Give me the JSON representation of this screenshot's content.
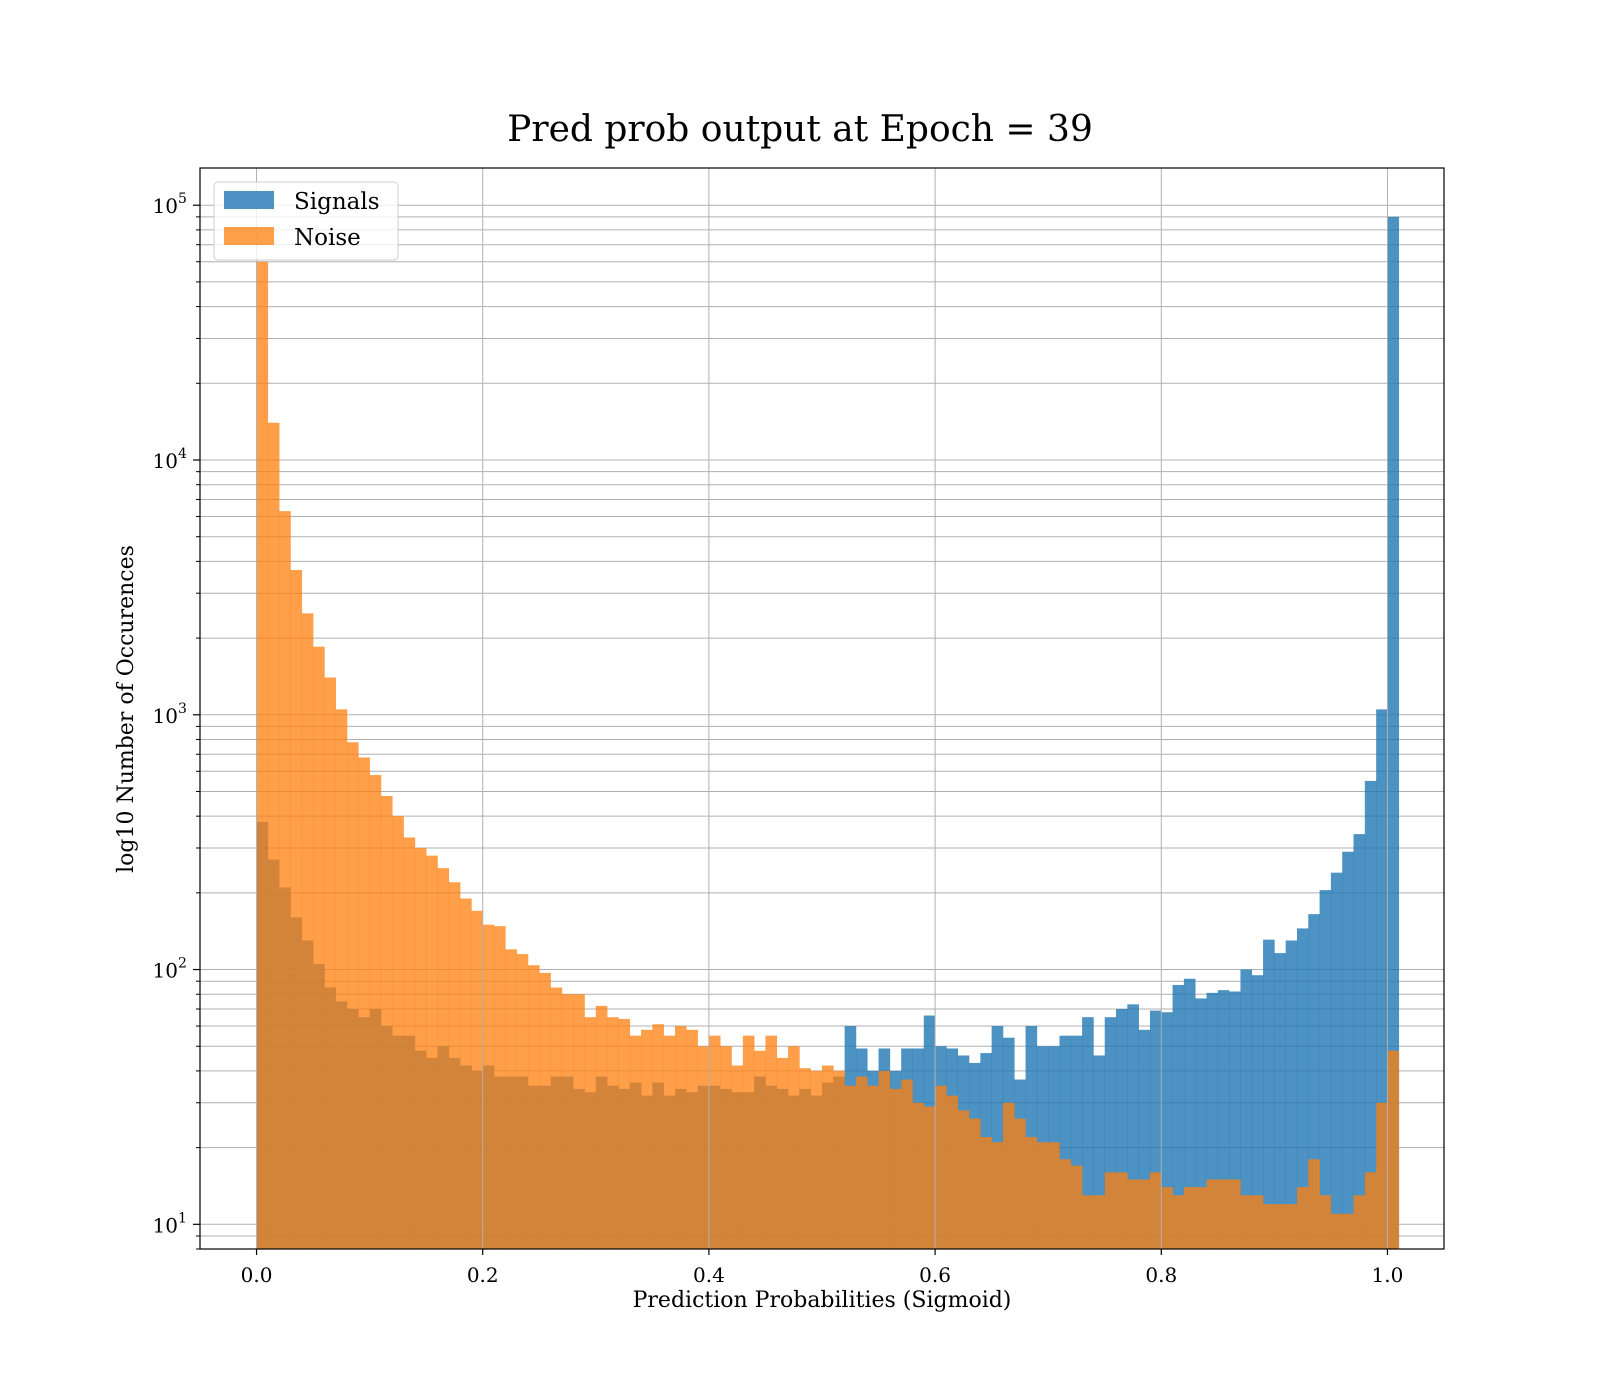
{
  "chart_data": {
    "type": "histogram",
    "title": "Pred prob output at Epoch = 39",
    "xlabel": "Prediction Probabilities (Sigmoid)",
    "ylabel": "log10 Number of Occurences",
    "xlim": [
      -0.05,
      1.05
    ],
    "ylim": [
      8,
      140000
    ],
    "yscale": "log",
    "grid": true,
    "legend_position": "upper-left",
    "x_ticks": [
      {
        "value": 0.0,
        "label": "0.0"
      },
      {
        "value": 0.2,
        "label": "0.2"
      },
      {
        "value": 0.4,
        "label": "0.4"
      },
      {
        "value": 0.6,
        "label": "0.6"
      },
      {
        "value": 0.8,
        "label": "0.8"
      },
      {
        "value": 1.0,
        "label": "1.0"
      }
    ],
    "y_ticks": [
      {
        "value": 10,
        "base": "10",
        "exp": "1"
      },
      {
        "value": 100,
        "base": "10",
        "exp": "2"
      },
      {
        "value": 1000,
        "base": "10",
        "exp": "3"
      },
      {
        "value": 10000,
        "base": "10",
        "exp": "4"
      },
      {
        "value": 100000,
        "base": "10",
        "exp": "5"
      }
    ],
    "bin_start": 0.0,
    "bin_width": 0.01,
    "series": [
      {
        "name": "Signals",
        "color": "#1f77b4",
        "opacity": 0.8,
        "values": [
          380,
          270,
          210,
          160,
          130,
          105,
          85,
          75,
          70,
          65,
          70,
          60,
          55,
          55,
          48,
          45,
          50,
          45,
          42,
          40,
          42,
          38,
          38,
          38,
          35,
          35,
          38,
          38,
          34,
          33,
          38,
          35,
          34,
          36,
          32,
          36,
          32,
          34,
          33,
          35,
          35,
          34,
          33,
          33,
          38,
          35,
          34,
          32,
          34,
          32,
          36,
          38,
          60,
          49,
          40,
          49,
          40,
          49,
          49,
          66,
          50,
          49,
          46,
          43,
          47,
          60,
          54,
          37,
          60,
          50,
          50,
          55,
          55,
          65,
          46,
          65,
          70,
          73,
          58,
          69,
          68,
          87,
          92,
          77,
          81,
          83,
          82,
          100,
          95,
          131,
          116,
          130,
          145,
          165,
          205,
          240,
          290,
          340,
          550,
          1050,
          90000
        ]
      },
      {
        "name": "Noise",
        "color": "#ff7f0e",
        "opacity": 0.75,
        "values": [
          60000,
          14000,
          6300,
          3700,
          2500,
          1850,
          1400,
          1050,
          780,
          680,
          580,
          480,
          400,
          330,
          300,
          280,
          250,
          220,
          190,
          170,
          150,
          148,
          120,
          115,
          104,
          97,
          85,
          80,
          80,
          65,
          72,
          65,
          64,
          55,
          58,
          61,
          55,
          60,
          58,
          50,
          55,
          50,
          42,
          55,
          48,
          55,
          45,
          50,
          41,
          40,
          42,
          40,
          35,
          38,
          35,
          40,
          34,
          37,
          30,
          29,
          35,
          32,
          28,
          26,
          22,
          21,
          30,
          26,
          22,
          21,
          21,
          18,
          17,
          13,
          13,
          16,
          16,
          15,
          15,
          16,
          14,
          13,
          14,
          14,
          15,
          15,
          15,
          13,
          13,
          12,
          12,
          12,
          14,
          18,
          13,
          11,
          11,
          13,
          16,
          30,
          48
        ]
      }
    ]
  }
}
